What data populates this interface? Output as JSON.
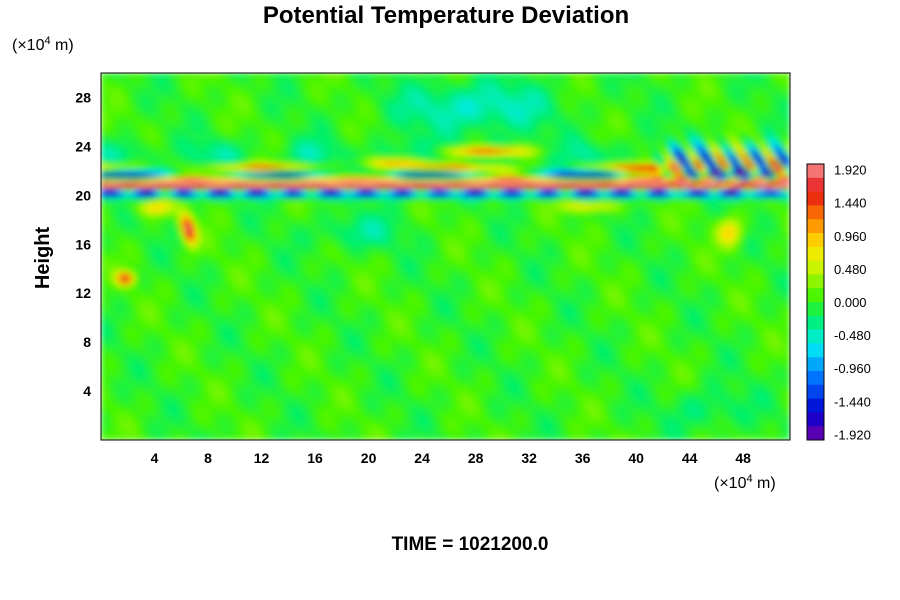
{
  "chart_data": {
    "type": "heatmap",
    "title": "Potential Temperature Deviation",
    "ylabel": "Height",
    "y_unit_prefix": "(×10",
    "y_unit_exp": "4",
    "y_unit_suffix": " m)",
    "x_unit_prefix": "(×10",
    "x_unit_exp": "4",
    "x_unit_suffix": " m)",
    "xlim": [
      0,
      51.5
    ],
    "ylim": [
      0,
      30
    ],
    "x_ticks": [
      4,
      8,
      12,
      16,
      20,
      24,
      28,
      32,
      36,
      40,
      44,
      48
    ],
    "y_ticks": [
      4,
      8,
      12,
      16,
      20,
      24,
      28
    ],
    "colorbar": {
      "range": [
        -2.0,
        2.0
      ],
      "labels": [
        "1.920",
        "1.440",
        "0.960",
        "0.480",
        "0.000",
        "-0.480",
        "-0.960",
        "-1.440",
        "-1.920"
      ],
      "label_values": [
        1.92,
        1.44,
        0.96,
        0.48,
        0.0,
        -0.48,
        -0.96,
        -1.44,
        -1.92
      ]
    },
    "field_description": "Near-zero deviation over most of domain; strong alternating band of large positive and negative deviations near height 20-23 (x10^4 m), wave packets near x 42-50, positive plume near x 5-7, height 15-18",
    "time_label": "TIME = 1021200.0"
  },
  "colors": {
    "background": "#ffffff",
    "frame": "#000000"
  }
}
